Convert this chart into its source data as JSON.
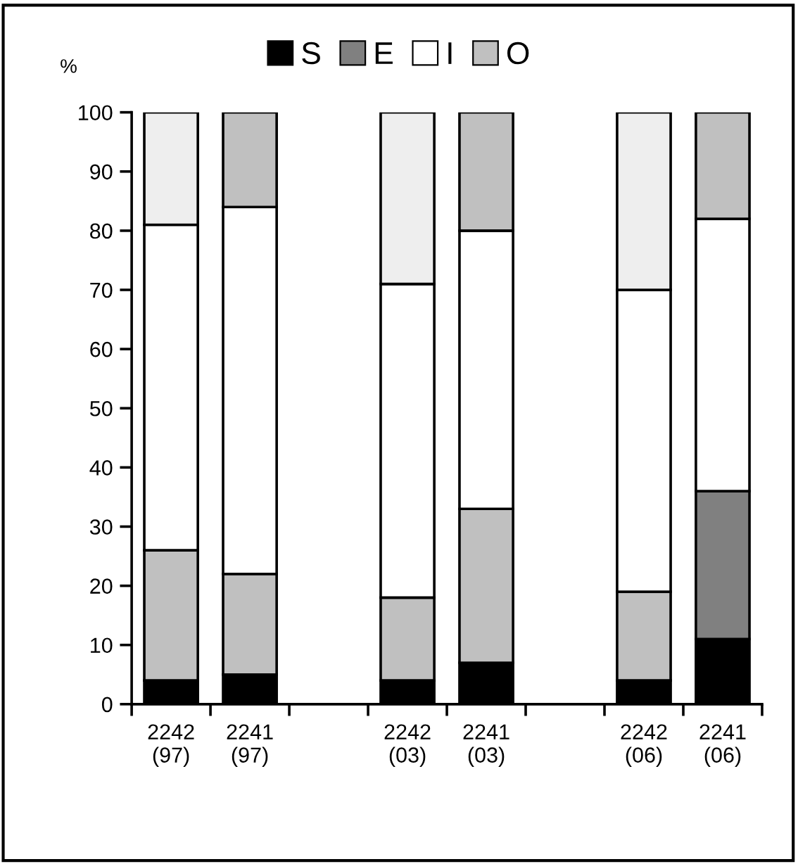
{
  "chart_data": {
    "type": "bar",
    "stacked": true,
    "ylabel": "%",
    "categories": [
      "2242\n(97)",
      "2241\n(97)",
      null,
      "2242\n(03)",
      "2241\n(03)",
      null,
      "2242\n(06)",
      "2241\n(06)"
    ],
    "series": [
      {
        "name": "S",
        "color": "#000000",
        "values": [
          4,
          5,
          null,
          4,
          7,
          null,
          4,
          11
        ]
      },
      {
        "name": "E",
        "color": "#808080",
        "colors": [
          "#c0c0c0",
          "#c0c0c0",
          null,
          "#c0c0c0",
          "#c0c0c0",
          null,
          "#c0c0c0",
          "#808080"
        ],
        "values": [
          22,
          17,
          null,
          14,
          26,
          null,
          15,
          25
        ]
      },
      {
        "name": "I",
        "color": "#ffffff",
        "values": [
          55,
          62,
          null,
          53,
          47,
          null,
          51,
          46
        ]
      },
      {
        "name": "O",
        "color": "#c0c0c0",
        "colors": [
          "#eeeeee",
          "#c0c0c0",
          null,
          "#eeeeee",
          "#c0c0c0",
          null,
          "#eeeeee",
          "#c0c0c0"
        ],
        "values": [
          19,
          16,
          null,
          29,
          20,
          null,
          30,
          18
        ]
      }
    ],
    "ylim": [
      0,
      100
    ],
    "yticks": [
      0,
      10,
      20,
      30,
      40,
      50,
      60,
      70,
      80,
      90,
      100
    ],
    "grid": false,
    "legend": "top"
  }
}
